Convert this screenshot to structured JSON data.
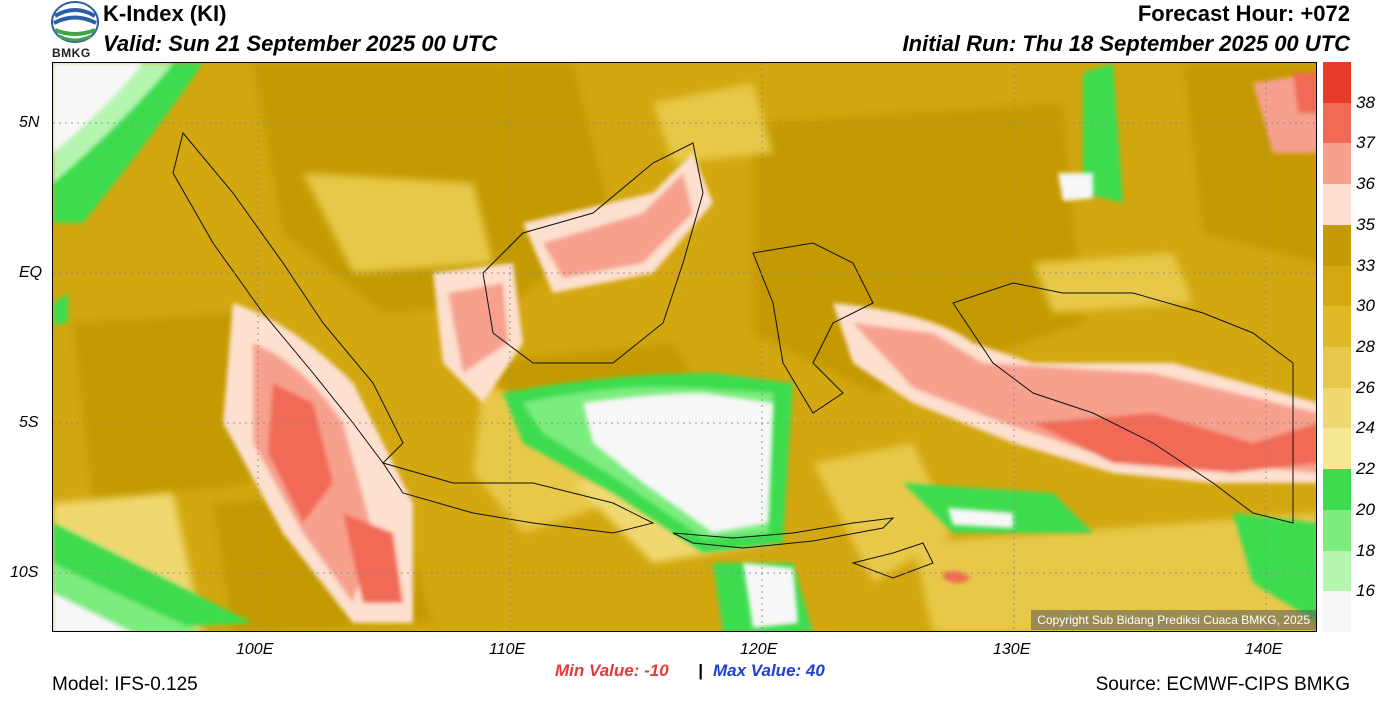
{
  "header": {
    "title": "K-Index (KI)",
    "valid": "Valid: Sun 21 September 2025 00 UTC",
    "forecast_hour": "Forecast Hour: +072",
    "initial_run": "Initial Run: Thu 18 September 2025 00 UTC",
    "logo_text": "BMKG"
  },
  "axes": {
    "lat_labels": [
      "5N",
      "EQ",
      "5S",
      "10S"
    ],
    "lon_labels": [
      "100E",
      "110E",
      "120E",
      "130E",
      "140E"
    ]
  },
  "colorbar": {
    "labels": [
      "38",
      "37",
      "36",
      "35",
      "33",
      "30",
      "28",
      "26",
      "24",
      "22",
      "20",
      "18",
      "16"
    ],
    "colors": [
      "#e63b27",
      "#f06a55",
      "#f7a08e",
      "#fde0cf",
      "#c49a06",
      "#d4a90f",
      "#e0b929",
      "#e8c84a",
      "#f0d870",
      "#f6e793",
      "#3ddc4f",
      "#7cec7f",
      "#b5f5b0",
      "#f7f7f7"
    ]
  },
  "footer": {
    "min_value": "Min Value: -10",
    "separator": "|",
    "max_value": "Max Value:  40",
    "model": "Model: IFS-0.125",
    "source": "Source: ECMWF-CIPS BMKG",
    "copyright": "Copyright Sub Bidang Prediksi Cuaca BMKG, 2025"
  }
}
